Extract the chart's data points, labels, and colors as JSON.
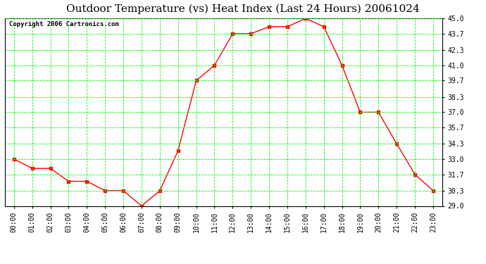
{
  "title": "Outdoor Temperature (vs) Heat Index (Last 24 Hours) 20061024",
  "copyright_text": "Copyright 2006 Cartronics.com",
  "x_labels": [
    "00:00",
    "01:00",
    "02:00",
    "03:00",
    "04:00",
    "05:00",
    "06:00",
    "07:00",
    "08:00",
    "09:00",
    "10:00",
    "11:00",
    "12:00",
    "13:00",
    "14:00",
    "15:00",
    "16:00",
    "17:00",
    "18:00",
    "19:00",
    "20:00",
    "21:00",
    "22:00",
    "23:00"
  ],
  "y_values": [
    33.0,
    32.2,
    32.2,
    31.1,
    31.1,
    30.3,
    30.3,
    29.0,
    30.3,
    33.7,
    39.7,
    41.0,
    43.7,
    43.7,
    44.3,
    44.3,
    45.0,
    44.3,
    41.0,
    37.0,
    37.0,
    34.3,
    31.7,
    30.3
  ],
  "line_color": "#FF0000",
  "marker": "s",
  "marker_size": 2.5,
  "background_color": "#FFFFFF",
  "plot_bg_color": "#FFFFFF",
  "grid_color": "#00FF00",
  "grid_style": "--",
  "y_min": 29.0,
  "y_max": 45.0,
  "y_ticks": [
    29.0,
    30.3,
    31.7,
    33.0,
    34.3,
    35.7,
    37.0,
    38.3,
    39.7,
    41.0,
    42.3,
    43.7,
    45.0
  ],
  "title_fontsize": 11,
  "tick_fontsize": 7,
  "copyright_fontsize": 6.5
}
